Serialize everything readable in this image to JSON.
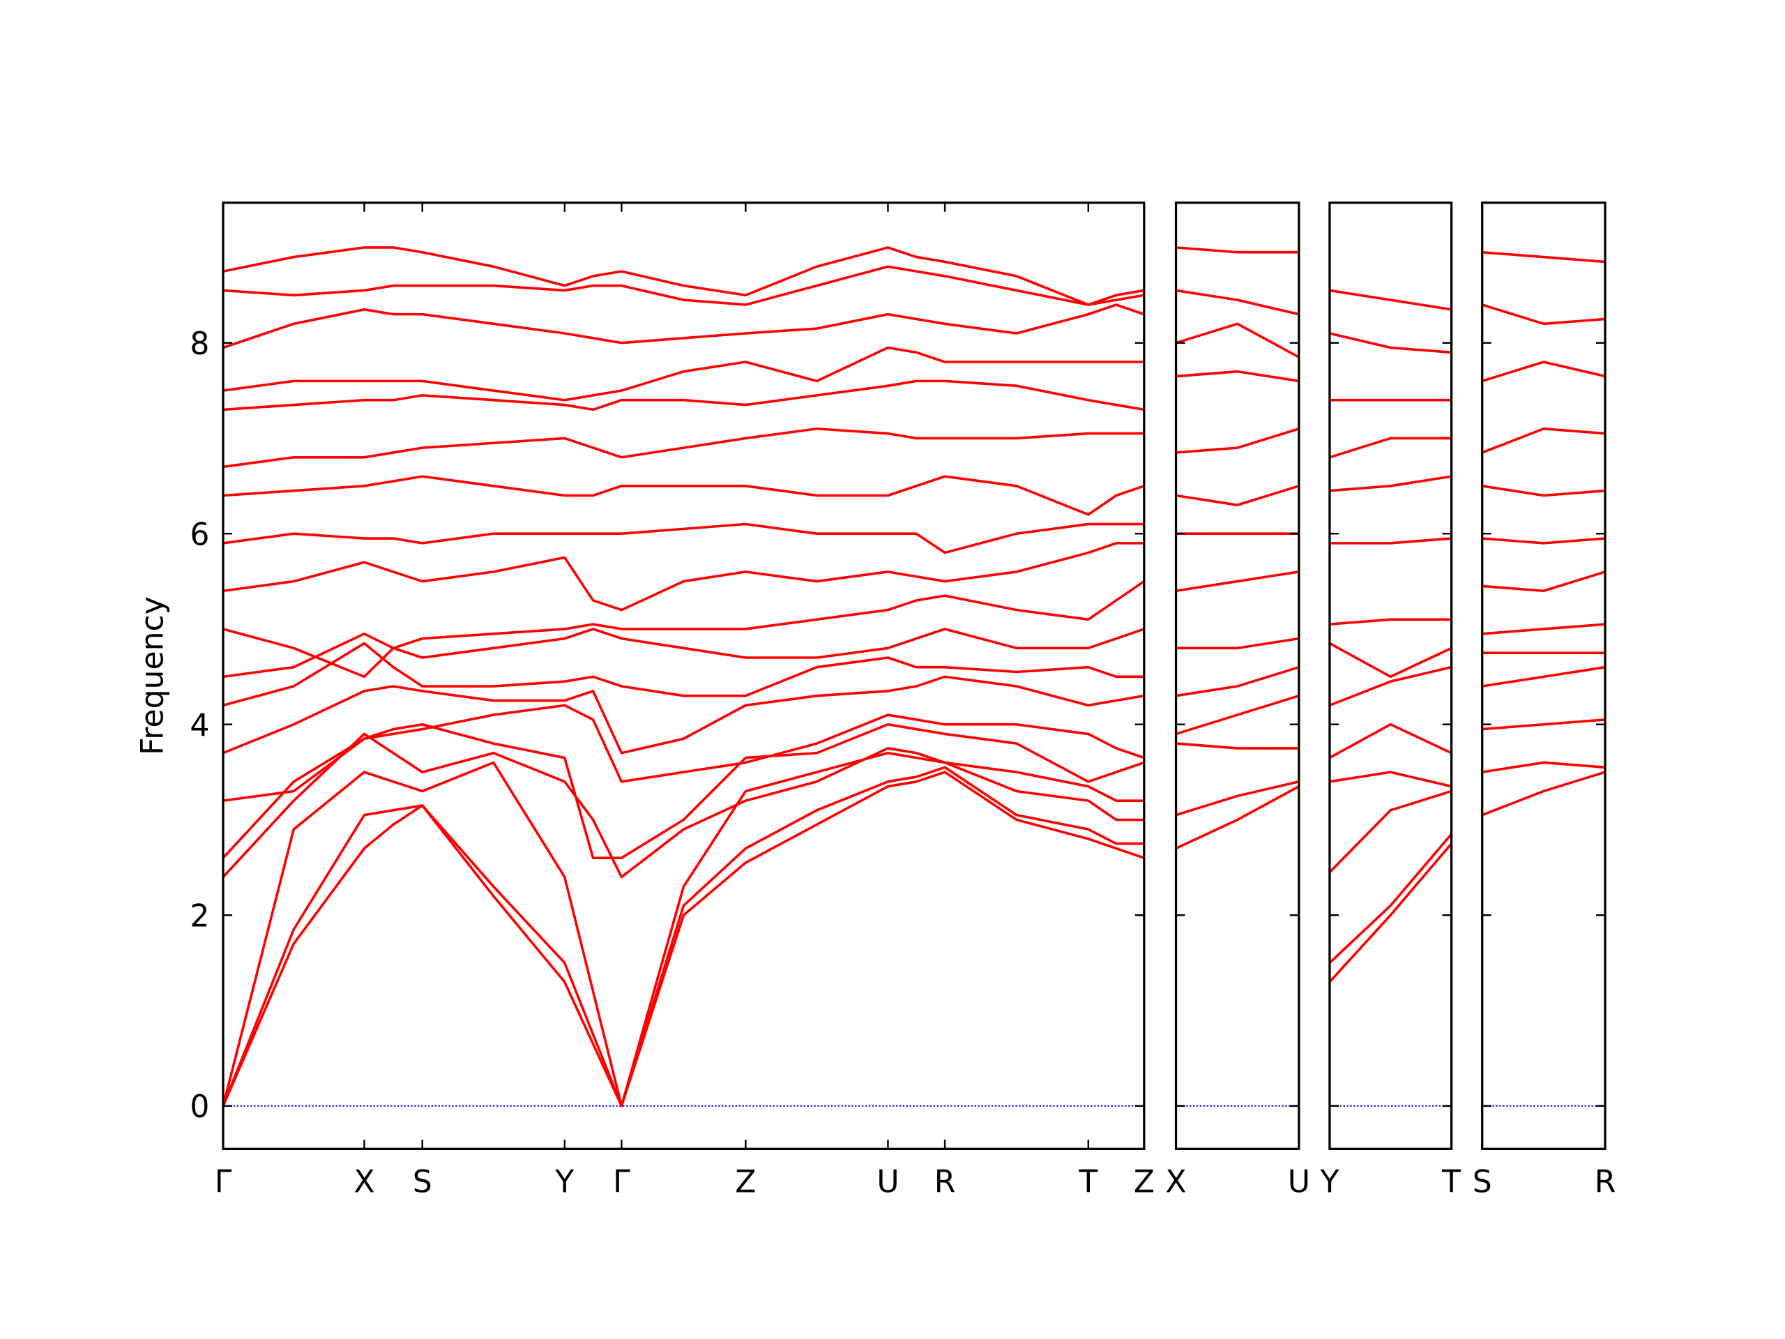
{
  "chart_data": [
    {
      "type": "line",
      "y_label": "Frequency",
      "color": "#ff0000",
      "zero_line_color": "#0000ff",
      "x": [
        0,
        0.62,
        1.24,
        1.495,
        1.75,
        2.375,
        3.0,
        3.25,
        3.5,
        4.045,
        4.59,
        5.215,
        5.84,
        6.09,
        6.34,
        6.97,
        7.6,
        7.845,
        8.09
      ],
      "xlim": [
        0,
        8.09
      ],
      "xticks": [
        {
          "value": 0,
          "label": "Γ"
        },
        {
          "value": 1.24,
          "label": "X"
        },
        {
          "value": 1.75,
          "label": "S"
        },
        {
          "value": 3.0,
          "label": "Y"
        },
        {
          "value": 3.5,
          "label": "Γ"
        },
        {
          "value": 4.59,
          "label": "Z"
        },
        {
          "value": 5.84,
          "label": "U"
        },
        {
          "value": 6.34,
          "label": "R"
        },
        {
          "value": 7.6,
          "label": "T"
        },
        {
          "value": 8.09,
          "label": "Z"
        }
      ],
      "ylim": [
        -0.45,
        9.47
      ],
      "yticks": [
        0,
        2,
        4,
        6,
        8
      ],
      "series": [
        {
          "values": [
            0,
            1.7,
            2.7,
            2.95,
            3.15,
            2.2,
            1.3,
            0.65,
            0,
            2.0,
            2.55,
            2.95,
            3.35,
            3.4,
            3.5,
            3.0,
            2.8,
            2.7,
            2.6
          ]
        },
        {
          "values": [
            0,
            1.85,
            3.05,
            3.1,
            3.15,
            2.3,
            1.5,
            0.75,
            0,
            2.1,
            2.7,
            3.1,
            3.4,
            3.45,
            3.55,
            3.05,
            2.9,
            2.75,
            2.75
          ]
        },
        {
          "values": [
            0,
            2.9,
            3.5,
            3.4,
            3.3,
            3.6,
            2.4,
            1.2,
            0,
            2.3,
            3.3,
            3.5,
            3.7,
            3.65,
            3.6,
            3.3,
            3.2,
            3.0,
            3.0
          ]
        },
        {
          "values": [
            2.4,
            3.2,
            3.9,
            3.7,
            3.5,
            3.7,
            3.4,
            3.0,
            2.4,
            2.9,
            3.2,
            3.4,
            3.75,
            3.7,
            3.6,
            3.5,
            3.35,
            3.2,
            3.2
          ]
        },
        {
          "values": [
            2.6,
            3.4,
            3.85,
            3.95,
            4.0,
            3.8,
            3.65,
            2.6,
            2.6,
            3.0,
            3.65,
            3.7,
            4.0,
            3.95,
            3.9,
            3.8,
            3.4,
            3.5,
            3.6
          ]
        },
        {
          "values": [
            3.2,
            3.3,
            3.85,
            3.9,
            3.95,
            4.1,
            4.2,
            4.05,
            3.4,
            3.5,
            3.6,
            3.8,
            4.1,
            4.05,
            4.0,
            4.0,
            3.9,
            3.75,
            3.65
          ]
        },
        {
          "values": [
            3.7,
            4.0,
            4.35,
            4.4,
            4.35,
            4.25,
            4.25,
            4.35,
            3.7,
            3.85,
            4.2,
            4.3,
            4.35,
            4.4,
            4.5,
            4.4,
            4.2,
            4.25,
            4.3
          ]
        },
        {
          "values": [
            4.2,
            4.4,
            4.85,
            4.6,
            4.4,
            4.4,
            4.45,
            4.5,
            4.4,
            4.3,
            4.3,
            4.6,
            4.7,
            4.6,
            4.6,
            4.55,
            4.6,
            4.5,
            4.5
          ]
        },
        {
          "values": [
            4.5,
            4.6,
            4.95,
            4.8,
            4.7,
            4.8,
            4.9,
            5.0,
            4.9,
            4.8,
            4.7,
            4.7,
            4.8,
            4.9,
            5.0,
            4.8,
            4.8,
            4.9,
            5.0
          ]
        },
        {
          "values": [
            5.0,
            4.8,
            4.5,
            4.8,
            4.9,
            4.95,
            5.0,
            5.05,
            5.0,
            5.0,
            5.0,
            5.1,
            5.2,
            5.3,
            5.35,
            5.2,
            5.1,
            5.3,
            5.5
          ]
        },
        {
          "values": [
            5.4,
            5.5,
            5.7,
            5.6,
            5.5,
            5.6,
            5.75,
            5.3,
            5.2,
            5.5,
            5.6,
            5.5,
            5.6,
            5.55,
            5.5,
            5.6,
            5.8,
            5.9,
            5.9
          ]
        },
        {
          "values": [
            5.9,
            6.0,
            5.95,
            5.95,
            5.9,
            6.0,
            6.0,
            6.0,
            6.0,
            6.05,
            6.1,
            6.0,
            6.0,
            6.0,
            5.8,
            6.0,
            6.1,
            6.1,
            6.1
          ]
        },
        {
          "values": [
            6.4,
            6.45,
            6.5,
            6.55,
            6.6,
            6.5,
            6.4,
            6.4,
            6.5,
            6.5,
            6.5,
            6.4,
            6.4,
            6.5,
            6.6,
            6.5,
            6.2,
            6.4,
            6.5
          ]
        },
        {
          "values": [
            6.7,
            6.8,
            6.8,
            6.85,
            6.9,
            6.95,
            7.0,
            6.9,
            6.8,
            6.9,
            7.0,
            7.1,
            7.05,
            7.0,
            7.0,
            7.0,
            7.05,
            7.05,
            7.05
          ]
        },
        {
          "values": [
            7.3,
            7.35,
            7.4,
            7.4,
            7.45,
            7.4,
            7.35,
            7.3,
            7.4,
            7.4,
            7.35,
            7.45,
            7.55,
            7.6,
            7.6,
            7.55,
            7.4,
            7.35,
            7.3
          ]
        },
        {
          "values": [
            7.5,
            7.6,
            7.6,
            7.6,
            7.6,
            7.5,
            7.4,
            7.45,
            7.5,
            7.7,
            7.8,
            7.6,
            7.95,
            7.9,
            7.8,
            7.8,
            7.8,
            7.8,
            7.8
          ]
        },
        {
          "values": [
            7.95,
            8.2,
            8.35,
            8.3,
            8.3,
            8.2,
            8.1,
            8.05,
            8.0,
            8.05,
            8.1,
            8.15,
            8.3,
            8.25,
            8.2,
            8.1,
            8.3,
            8.4,
            8.3
          ]
        },
        {
          "values": [
            8.55,
            8.5,
            8.55,
            8.6,
            8.6,
            8.6,
            8.55,
            8.6,
            8.6,
            8.45,
            8.4,
            8.6,
            8.8,
            8.75,
            8.7,
            8.55,
            8.4,
            8.45,
            8.5
          ]
        },
        {
          "values": [
            8.75,
            8.9,
            9.0,
            9.0,
            8.95,
            8.8,
            8.6,
            8.7,
            8.75,
            8.6,
            8.5,
            8.8,
            9.0,
            8.9,
            8.85,
            8.7,
            8.4,
            8.5,
            8.55
          ]
        }
      ]
    },
    {
      "type": "line",
      "color": "#ff0000",
      "zero_line_color": "#0000ff",
      "x": [
        0,
        0.54,
        1.08
      ],
      "xlim": [
        0,
        1.08
      ],
      "xticks": [
        {
          "value": 0,
          "label": "X"
        },
        {
          "value": 1.08,
          "label": "U"
        }
      ],
      "ylim": [
        -0.45,
        9.47
      ],
      "series": [
        {
          "values": [
            2.7,
            3.0,
            3.35
          ]
        },
        {
          "values": [
            3.05,
            3.25,
            3.4
          ]
        },
        {
          "values": [
            3.8,
            3.75,
            3.75
          ]
        },
        {
          "values": [
            3.9,
            4.1,
            4.3
          ]
        },
        {
          "values": [
            4.3,
            4.4,
            4.6
          ]
        },
        {
          "values": [
            4.8,
            4.8,
            4.9
          ]
        },
        {
          "values": [
            5.4,
            5.5,
            5.6
          ]
        },
        {
          "values": [
            6.0,
            6.0,
            6.0
          ]
        },
        {
          "values": [
            6.4,
            6.3,
            6.5
          ]
        },
        {
          "values": [
            6.85,
            6.9,
            7.1
          ]
        },
        {
          "values": [
            7.65,
            7.7,
            7.6
          ]
        },
        {
          "values": [
            8.0,
            8.2,
            7.85
          ]
        },
        {
          "values": [
            8.55,
            8.45,
            8.3
          ]
        },
        {
          "values": [
            9.0,
            8.95,
            8.95
          ]
        }
      ]
    },
    {
      "type": "line",
      "color": "#ff0000",
      "zero_line_color": "#0000ff",
      "x": [
        0,
        0.535,
        1.07
      ],
      "xlim": [
        0,
        1.07
      ],
      "xticks": [
        {
          "value": 0,
          "label": "Y"
        },
        {
          "value": 1.07,
          "label": "T"
        }
      ],
      "ylim": [
        -0.45,
        9.47
      ],
      "series": [
        {
          "values": [
            1.3,
            2.0,
            2.75
          ]
        },
        {
          "values": [
            1.5,
            2.1,
            2.85
          ]
        },
        {
          "values": [
            2.45,
            3.1,
            3.3
          ]
        },
        {
          "values": [
            3.4,
            3.5,
            3.35
          ]
        },
        {
          "values": [
            3.65,
            4.0,
            3.7
          ]
        },
        {
          "values": [
            4.2,
            4.45,
            4.6
          ]
        },
        {
          "values": [
            4.85,
            4.5,
            4.8
          ]
        },
        {
          "values": [
            5.05,
            5.1,
            5.1
          ]
        },
        {
          "values": [
            5.9,
            5.9,
            5.95
          ]
        },
        {
          "values": [
            6.45,
            6.5,
            6.6
          ]
        },
        {
          "values": [
            6.8,
            7.0,
            7.0
          ]
        },
        {
          "values": [
            7.4,
            7.4,
            7.4
          ]
        },
        {
          "values": [
            8.1,
            7.95,
            7.9
          ]
        },
        {
          "values": [
            8.55,
            8.45,
            8.35
          ]
        }
      ]
    },
    {
      "type": "line",
      "color": "#ff0000",
      "zero_line_color": "#0000ff",
      "x": [
        0,
        0.54,
        1.08
      ],
      "xlim": [
        0,
        1.08
      ],
      "xticks": [
        {
          "value": 0,
          "label": "S"
        },
        {
          "value": 1.08,
          "label": "R"
        }
      ],
      "ylim": [
        -0.45,
        9.47
      ],
      "series": [
        {
          "values": [
            3.05,
            3.3,
            3.5
          ]
        },
        {
          "values": [
            3.5,
            3.6,
            3.55
          ]
        },
        {
          "values": [
            3.95,
            4.0,
            4.05
          ]
        },
        {
          "values": [
            4.4,
            4.5,
            4.6
          ]
        },
        {
          "values": [
            4.75,
            4.75,
            4.75
          ]
        },
        {
          "values": [
            4.95,
            5.0,
            5.05
          ]
        },
        {
          "values": [
            5.45,
            5.4,
            5.6
          ]
        },
        {
          "values": [
            5.95,
            5.9,
            5.95
          ]
        },
        {
          "values": [
            6.5,
            6.4,
            6.45
          ]
        },
        {
          "values": [
            6.85,
            7.1,
            7.05
          ]
        },
        {
          "values": [
            7.6,
            7.8,
            7.65
          ]
        },
        {
          "values": [
            8.4,
            8.2,
            8.25
          ]
        },
        {
          "values": [
            8.95,
            8.9,
            8.85
          ]
        }
      ]
    }
  ]
}
